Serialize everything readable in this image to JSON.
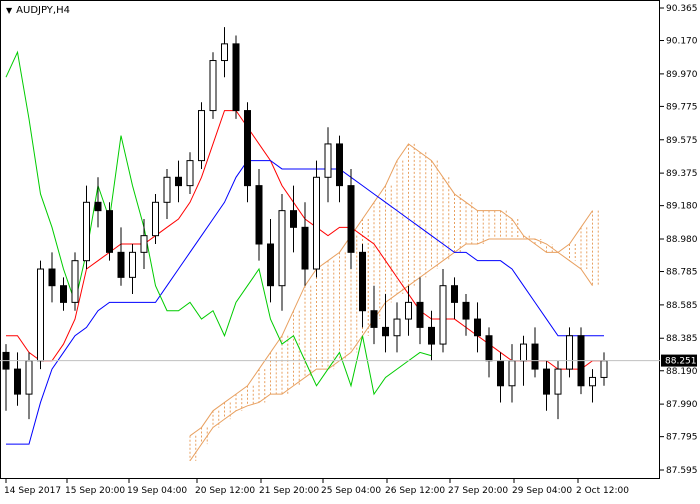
{
  "header": {
    "symbol_timeframe": "AUDJPY,H4",
    "dropdown_icon": "triangle-down-icon"
  },
  "price_tag": {
    "value": "88.251",
    "color": "#000000"
  },
  "colors": {
    "tenkan": "#ff0000",
    "kijun": "#0000ff",
    "chikou": "#00cc00",
    "cloud": "#e8a060",
    "candle_bull": "#ffffff",
    "candle_bear": "#000000",
    "price_line": "#c0c0c0"
  },
  "chart_data": {
    "type": "candlestick",
    "instrument": "AUDJPY",
    "timeframe": "H4",
    "y_ticks": [
      90.365,
      90.17,
      89.97,
      89.775,
      89.575,
      89.375,
      89.18,
      88.98,
      88.785,
      88.585,
      88.385,
      88.19,
      87.99,
      87.795,
      87.595
    ],
    "ylim": [
      87.595,
      90.365
    ],
    "x_ticks": [
      "14 Sep 2017",
      "15 Sep 20:00",
      "19 Sep 04:00",
      "20 Sep 12:00",
      "21 Sep 20:00",
      "25 Sep 04:00",
      "26 Sep 12:00",
      "27 Sep 20:00",
      "29 Sep 04:00",
      "2 Oct 12:00"
    ],
    "last_price": 88.251,
    "candles": [
      [
        88.3,
        88.35,
        87.95,
        88.2
      ],
      [
        88.2,
        88.3,
        87.98,
        88.05
      ],
      [
        88.05,
        88.3,
        87.9,
        88.25
      ],
      [
        88.25,
        88.85,
        88.2,
        88.8
      ],
      [
        88.8,
        88.9,
        88.6,
        88.7
      ],
      [
        88.7,
        88.75,
        88.55,
        88.6
      ],
      [
        88.6,
        88.9,
        88.55,
        88.85
      ],
      [
        88.85,
        89.3,
        88.8,
        89.2
      ],
      [
        89.2,
        89.35,
        89.05,
        89.15
      ],
      [
        89.15,
        89.2,
        88.85,
        88.9
      ],
      [
        88.9,
        89.05,
        88.7,
        88.75
      ],
      [
        88.75,
        88.95,
        88.65,
        88.9
      ],
      [
        88.9,
        89.1,
        88.8,
        89.0
      ],
      [
        89.0,
        89.25,
        88.95,
        89.2
      ],
      [
        89.2,
        89.4,
        89.1,
        89.35
      ],
      [
        89.35,
        89.45,
        89.2,
        89.3
      ],
      [
        89.3,
        89.5,
        89.25,
        89.45
      ],
      [
        89.45,
        89.8,
        89.4,
        89.75
      ],
      [
        89.75,
        90.1,
        89.7,
        90.05
      ],
      [
        90.05,
        90.25,
        89.95,
        90.15
      ],
      [
        90.15,
        90.2,
        89.7,
        89.75
      ],
      [
        89.75,
        89.8,
        89.2,
        89.3
      ],
      [
        89.3,
        89.4,
        88.85,
        88.95
      ],
      [
        88.95,
        89.1,
        88.6,
        88.7
      ],
      [
        88.7,
        89.25,
        88.55,
        89.15
      ],
      [
        89.15,
        89.3,
        88.9,
        89.05
      ],
      [
        89.05,
        89.2,
        88.7,
        88.8
      ],
      [
        88.8,
        89.45,
        88.75,
        89.35
      ],
      [
        89.35,
        89.65,
        89.2,
        89.55
      ],
      [
        89.55,
        89.6,
        89.2,
        89.3
      ],
      [
        89.3,
        89.4,
        88.8,
        88.9
      ],
      [
        88.9,
        88.95,
        88.45,
        88.55
      ],
      [
        88.55,
        88.7,
        88.35,
        88.45
      ],
      [
        88.45,
        88.65,
        88.3,
        88.4
      ],
      [
        88.4,
        88.6,
        88.3,
        88.5
      ],
      [
        88.5,
        88.7,
        88.4,
        88.6
      ],
      [
        88.6,
        88.75,
        88.35,
        88.45
      ],
      [
        88.45,
        88.55,
        88.25,
        88.35
      ],
      [
        88.35,
        88.8,
        88.3,
        88.7
      ],
      [
        88.7,
        88.75,
        88.5,
        88.6
      ],
      [
        88.6,
        88.65,
        88.4,
        88.5
      ],
      [
        88.5,
        88.6,
        88.3,
        88.4
      ],
      [
        88.4,
        88.45,
        88.15,
        88.25
      ],
      [
        88.25,
        88.3,
        88.0,
        88.1
      ],
      [
        88.1,
        88.35,
        88.0,
        88.25
      ],
      [
        88.25,
        88.4,
        88.1,
        88.35
      ],
      [
        88.35,
        88.45,
        88.15,
        88.2
      ],
      [
        88.2,
        88.25,
        87.95,
        88.05
      ],
      [
        88.05,
        88.25,
        87.9,
        88.2
      ],
      [
        88.2,
        88.45,
        88.15,
        88.4
      ],
      [
        88.4,
        88.45,
        88.05,
        88.1
      ],
      [
        88.1,
        88.2,
        88.0,
        88.15
      ],
      [
        88.15,
        88.3,
        88.1,
        88.25
      ]
    ],
    "tenkan_sen": [
      88.4,
      88.4,
      88.3,
      88.25,
      88.25,
      88.35,
      88.5,
      88.8,
      88.85,
      88.9,
      88.95,
      88.95,
      88.95,
      89.0,
      89.05,
      89.1,
      89.2,
      89.35,
      89.55,
      89.75,
      89.75,
      89.65,
      89.55,
      89.45,
      89.3,
      89.2,
      89.1,
      89.05,
      89.0,
      89.05,
      89.05,
      89.0,
      88.95,
      88.85,
      88.75,
      88.65,
      88.55,
      88.5,
      88.5,
      88.5,
      88.45,
      88.4,
      88.35,
      88.3,
      88.25,
      88.25,
      88.25,
      88.25,
      88.2,
      88.2,
      88.2,
      88.25,
      88.25
    ],
    "kijun_sen": [
      87.75,
      87.75,
      87.75,
      88.0,
      88.2,
      88.3,
      88.4,
      88.45,
      88.55,
      88.6,
      88.6,
      88.6,
      88.6,
      88.6,
      88.7,
      88.8,
      88.9,
      89.0,
      89.1,
      89.2,
      89.35,
      89.45,
      89.45,
      89.45,
      89.4,
      89.4,
      89.4,
      89.4,
      89.4,
      89.4,
      89.35,
      89.3,
      89.25,
      89.2,
      89.15,
      89.1,
      89.05,
      89.0,
      88.95,
      88.9,
      88.9,
      88.85,
      88.85,
      88.85,
      88.8,
      88.7,
      88.6,
      88.5,
      88.4,
      88.4,
      88.4,
      88.4,
      88.4
    ],
    "chikou_span": [
      89.95,
      90.1,
      89.7,
      89.25,
      89.05,
      88.8,
      88.6,
      88.9,
      89.3,
      89.1,
      89.6,
      89.3,
      89.05,
      88.7,
      88.55,
      88.55,
      88.6,
      88.5,
      88.55,
      88.4,
      88.6,
      88.7,
      88.8,
      88.5,
      88.35,
      88.4,
      88.25,
      88.1,
      88.2,
      88.3,
      88.1,
      88.4,
      88.05,
      88.15,
      88.2,
      88.25,
      88.3,
      88.28
    ],
    "senkou_span_a": [
      87.8,
      87.85,
      87.95,
      88.0,
      88.05,
      88.1,
      88.2,
      88.3,
      88.4,
      88.55,
      88.7,
      88.8,
      88.85,
      88.9,
      89.0,
      89.1,
      89.2,
      89.3,
      89.45,
      89.55,
      89.5,
      89.45,
      89.35,
      89.25,
      89.2,
      89.15,
      89.15,
      89.15,
      89.1,
      89.0,
      88.95,
      88.9,
      88.9,
      88.95,
      89.05,
      89.15
    ],
    "senkou_span_b": [
      87.65,
      87.75,
      87.85,
      87.9,
      87.95,
      87.98,
      88.0,
      88.05,
      88.05,
      88.1,
      88.15,
      88.2,
      88.2,
      88.25,
      88.3,
      88.4,
      88.5,
      88.6,
      88.65,
      88.7,
      88.75,
      88.8,
      88.85,
      88.9,
      88.95,
      88.95,
      88.98,
      88.98,
      88.98,
      88.98,
      88.98,
      88.95,
      88.9,
      88.85,
      88.8,
      88.7
    ]
  }
}
